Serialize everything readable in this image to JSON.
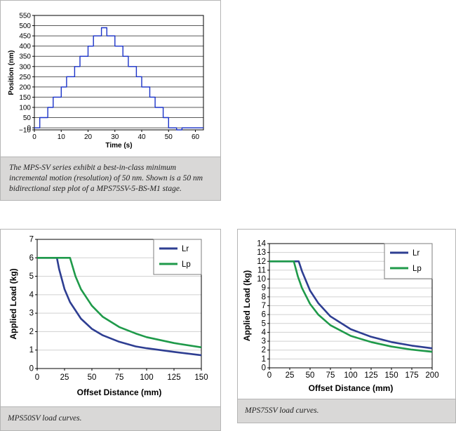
{
  "chart_data": [
    {
      "type": "line",
      "title": "",
      "xlabel": "Time (s)",
      "ylabel": "Position (nm)",
      "xlim": [
        0,
        63
      ],
      "ylim": [
        -10,
        550
      ],
      "xticks": [
        "0",
        "10",
        "20",
        "30",
        "40",
        "50",
        "60"
      ],
      "yticks": [
        "−10",
        "0",
        "50",
        "100",
        "150",
        "200",
        "250",
        "300",
        "350",
        "400",
        "450",
        "500",
        "550"
      ],
      "grid": true,
      "series": [
        {
          "color": "#1b33c9",
          "x": [
            0,
            2,
            2,
            5,
            5,
            7,
            7,
            10,
            10,
            12,
            12,
            15,
            15,
            17,
            17,
            20,
            20,
            22,
            22,
            25,
            25,
            27,
            27,
            30,
            30,
            33,
            33,
            35,
            35,
            38,
            38,
            40,
            40,
            43,
            43,
            45,
            45,
            48,
            48,
            50,
            50,
            53,
            53,
            55,
            55,
            58,
            58,
            60,
            60,
            63
          ],
          "y": [
            0,
            0,
            50,
            50,
            100,
            100,
            150,
            150,
            200,
            200,
            250,
            250,
            300,
            300,
            350,
            350,
            400,
            400,
            450,
            450,
            490,
            490,
            450,
            450,
            400,
            400,
            350,
            350,
            300,
            300,
            250,
            250,
            200,
            200,
            150,
            150,
            100,
            100,
            50,
            50,
            0,
            0,
            -10,
            -10,
            0,
            0,
            0,
            0,
            0,
            0
          ]
        }
      ],
      "caption": "The MPS-SV series exhibit a best-in-class minimum incremental motion (resolution) of 50 nm. Shown is a 50 nm bidirectional step plot of a MPS75SV-5-BS-M1 stage."
    },
    {
      "type": "line",
      "title": "",
      "xlabel": "Offset Distance (mm)",
      "ylabel": "Applied Load (kg)",
      "xlim": [
        0,
        150
      ],
      "ylim": [
        0,
        7
      ],
      "xticks": [
        "0",
        "25",
        "50",
        "75",
        "100",
        "125",
        "150"
      ],
      "yticks": [
        "0",
        "1",
        "2",
        "3",
        "4",
        "5",
        "6",
        "7"
      ],
      "grid": true,
      "legend": "top-right",
      "series": [
        {
          "name": "Lr",
          "color": "#2e3e92",
          "x": [
            0,
            18,
            20,
            25,
            30,
            40,
            50,
            60,
            75,
            90,
            100,
            125,
            150
          ],
          "y": [
            6,
            6,
            5.4,
            4.3,
            3.6,
            2.7,
            2.15,
            1.8,
            1.45,
            1.2,
            1.1,
            0.9,
            0.72
          ]
        },
        {
          "name": "Lp",
          "color": "#1f9a4a",
          "x": [
            0,
            30,
            35,
            40,
            50,
            60,
            75,
            90,
            100,
            125,
            150
          ],
          "y": [
            6,
            6,
            5,
            4.3,
            3.4,
            2.8,
            2.25,
            1.9,
            1.7,
            1.38,
            1.15
          ]
        }
      ],
      "caption": "MPS50SV load curves."
    },
    {
      "type": "line",
      "title": "",
      "xlabel": "Offset Distance (mm)",
      "ylabel": "Applied Load (kg)",
      "xlim": [
        0,
        200
      ],
      "ylim": [
        0,
        14
      ],
      "xticks": [
        "0",
        "25",
        "50",
        "75",
        "100",
        "125",
        "150",
        "175",
        "200"
      ],
      "yticks": [
        "0",
        "1",
        "2",
        "3",
        "4",
        "5",
        "6",
        "7",
        "8",
        "9",
        "10",
        "11",
        "12",
        "13",
        "14"
      ],
      "grid": true,
      "legend": "top-right",
      "series": [
        {
          "name": "Lr",
          "color": "#2e3e92",
          "x": [
            0,
            36,
            40,
            50,
            60,
            75,
            100,
            125,
            150,
            175,
            200
          ],
          "y": [
            12,
            12,
            10.9,
            8.7,
            7.3,
            5.8,
            4.35,
            3.5,
            2.9,
            2.5,
            2.2
          ]
        },
        {
          "name": "Lp",
          "color": "#1f9a4a",
          "x": [
            0,
            30,
            35,
            40,
            50,
            60,
            75,
            100,
            125,
            150,
            175,
            200
          ],
          "y": [
            12,
            12,
            10.3,
            9.0,
            7.2,
            6.0,
            4.8,
            3.6,
            2.9,
            2.4,
            2.05,
            1.8
          ]
        }
      ],
      "caption": "MPS75SV load curves."
    }
  ]
}
